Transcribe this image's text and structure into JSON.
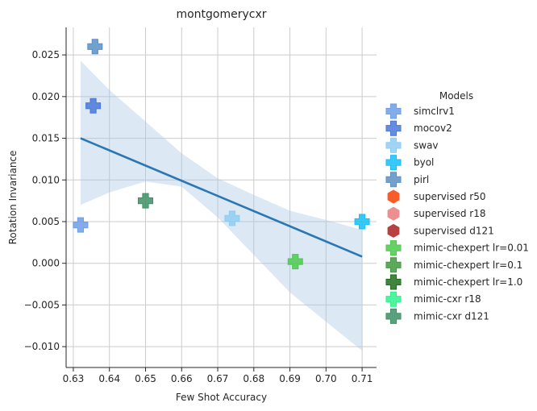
{
  "chart_data": {
    "type": "scatter",
    "title": "montgomerycxr",
    "xlabel": "Few Shot Accuracy",
    "ylabel": "Rotation Invariance",
    "xlim": [
      0.628,
      0.714
    ],
    "ylim": [
      -0.0125,
      0.0283
    ],
    "xticks": [
      0.63,
      0.64,
      0.65,
      0.66,
      0.67,
      0.68,
      0.69,
      0.7,
      0.71
    ],
    "xtick_labels": [
      "0.63",
      "0.64",
      "0.65",
      "0.66",
      "0.67",
      "0.68",
      "0.69",
      "0.70",
      "0.71"
    ],
    "yticks": [
      -0.01,
      -0.005,
      0.0,
      0.005,
      0.01,
      0.015,
      0.02,
      0.025
    ],
    "ytick_labels": [
      "−0.010",
      "−0.005",
      "0.000",
      "0.005",
      "0.010",
      "0.015",
      "0.020",
      "0.025"
    ],
    "grid": true,
    "legend": {
      "title": "Models",
      "placement": "right",
      "entries": [
        {
          "name": "simclrv1",
          "marker": "plus",
          "color": "#6f9de8"
        },
        {
          "name": "mocov2",
          "marker": "plus",
          "color": "#4a78d8"
        },
        {
          "name": "swav",
          "marker": "plus",
          "color": "#8ecdf5"
        },
        {
          "name": "byol",
          "marker": "plus",
          "color": "#16c0f7"
        },
        {
          "name": "pirl",
          "marker": "plus",
          "color": "#5b8fc4"
        },
        {
          "name": "supervised r50",
          "marker": "hexagon",
          "color": "#f85c2a"
        },
        {
          "name": "supervised r18",
          "marker": "hexagon",
          "color": "#ee8f8f"
        },
        {
          "name": "supervised d121",
          "marker": "hexagon",
          "color": "#b84040"
        },
        {
          "name": "mimic-chexpert lr=0.01",
          "marker": "plus",
          "color": "#4cc94c"
        },
        {
          "name": "mimic-chexpert lr=0.1",
          "marker": "plus",
          "color": "#3f9a3f"
        },
        {
          "name": "mimic-chexpert lr=1.0",
          "marker": "plus",
          "color": "#1e6e1e"
        },
        {
          "name": "mimic-cxr r18",
          "marker": "plus",
          "color": "#2ef18c"
        },
        {
          "name": "mimic-cxr d121",
          "marker": "plus",
          "color": "#3e8f66"
        }
      ]
    },
    "points": [
      {
        "model": "simclrv1",
        "x": 0.632,
        "y": 0.0046
      },
      {
        "model": "mocov2",
        "x": 0.6355,
        "y": 0.0189
      },
      {
        "model": "swav",
        "x": 0.674,
        "y": 0.0054
      },
      {
        "model": "byol",
        "x": 0.71,
        "y": 0.005
      },
      {
        "model": "pirl",
        "x": 0.636,
        "y": 0.026
      },
      {
        "model": "mimic-chexpert lr=0.01",
        "x": 0.6915,
        "y": 0.0002
      },
      {
        "model": "mimic-cxr d121",
        "x": 0.65,
        "y": 0.0075
      }
    ],
    "regression": {
      "color": "#2a77b4",
      "x": [
        0.632,
        0.71
      ],
      "y": [
        0.015,
        0.0008
      ],
      "ci_color": "#a7c6e4",
      "ci_band": [
        {
          "x": 0.632,
          "lower": 0.007,
          "upper": 0.0243
        },
        {
          "x": 0.64,
          "lower": 0.0085,
          "upper": 0.0208
        },
        {
          "x": 0.65,
          "lower": 0.0098,
          "upper": 0.017
        },
        {
          "x": 0.66,
          "lower": 0.0092,
          "upper": 0.0132
        },
        {
          "x": 0.67,
          "lower": 0.0055,
          "upper": 0.0102
        },
        {
          "x": 0.68,
          "lower": 0.001,
          "upper": 0.0082
        },
        {
          "x": 0.69,
          "lower": -0.0035,
          "upper": 0.0063
        },
        {
          "x": 0.7,
          "lower": -0.007,
          "upper": 0.0052
        },
        {
          "x": 0.71,
          "lower": -0.0105,
          "upper": 0.004
        }
      ]
    }
  }
}
